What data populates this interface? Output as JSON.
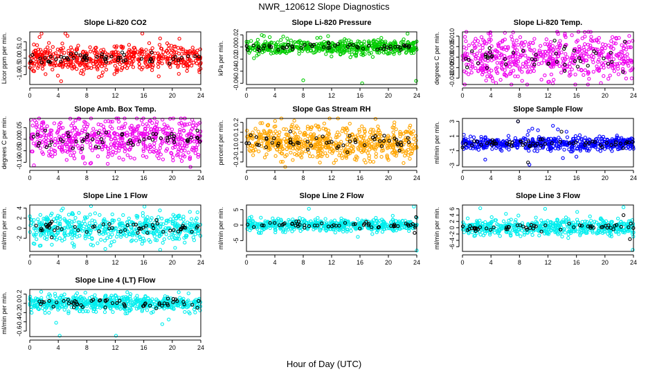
{
  "figure_title": "NWR_120612  Slope Diagnostics",
  "x_axis_label": "Hour of Day (UTC)",
  "chart_data": [
    {
      "type": "scatter",
      "title": "Slope Li-820 CO2",
      "ylabel": "Licor ppm per min.",
      "xlim": [
        0,
        24
      ],
      "ylim": [
        -1.6,
        1.6
      ],
      "x_ticks": [
        "0",
        "4",
        "8",
        "12",
        "16",
        "20",
        "24"
      ],
      "y_ticks": [
        {
          "v": -1,
          "label": "-1.0"
        },
        {
          "v": -0.5,
          "label": "-0.5"
        },
        {
          "v": 0,
          "label": "0.0"
        },
        {
          "v": 0.5,
          "label": "0.5"
        },
        {
          "v": 1,
          "label": "1.0"
        }
      ],
      "series": [
        {
          "color": "#ff0000",
          "n": 520,
          "spread": 0.42,
          "gen_seed": 11,
          "extras": [
            [
              4.4,
              -1.4
            ],
            [
              5.0,
              1.5
            ],
            [
              5.3,
              1.35
            ],
            [
              9.7,
              -1.15
            ],
            [
              15.8,
              1.5
            ],
            [
              18.3,
              1.2
            ],
            [
              18.1,
              -1.1
            ]
          ]
        },
        {
          "color": "#000000",
          "n": 55,
          "spread": 0.18,
          "gen_seed": 12
        }
      ],
      "grid": false
    },
    {
      "type": "scatter",
      "title": "Slope Li-820 Pressure",
      "ylabel": "kPa per min.",
      "xlim": [
        0,
        24
      ],
      "ylim": [
        -0.062,
        0.025
      ],
      "x_ticks": [
        "0",
        "4",
        "8",
        "12",
        "16",
        "20",
        "24"
      ],
      "y_ticks": [
        {
          "v": -0.06,
          "label": "-0.06"
        },
        {
          "v": -0.04,
          "label": "-0.04"
        },
        {
          "v": -0.02,
          "label": "-0.02"
        },
        {
          "v": 0,
          "label": "0.00"
        },
        {
          "v": 0.02,
          "label": "0.02"
        }
      ],
      "series": [
        {
          "color": "#00cc00",
          "n": 520,
          "spread": 0.006,
          "gen_seed": 21,
          "extras": [
            [
              8.0,
              -0.055
            ],
            [
              16.3,
              -0.06
            ],
            [
              23.9,
              -0.056
            ],
            [
              11.5,
              0.018
            ],
            [
              22.7,
              0.022
            ],
            [
              19.0,
              0.015
            ]
          ]
        },
        {
          "color": "#000000",
          "n": 55,
          "spread": 0.003,
          "gen_seed": 22
        }
      ],
      "grid": false
    },
    {
      "type": "scatter",
      "title": "Slope Li-820 Temp.",
      "ylabel": "degrees C per min.",
      "xlim": [
        0,
        24
      ],
      "ylim": [
        -0.013,
        0.012
      ],
      "x_ticks": [
        "0",
        "4",
        "8",
        "12",
        "16",
        "20",
        "24"
      ],
      "y_ticks": [
        {
          "v": -0.01,
          "label": "-0.010"
        },
        {
          "v": -0.005,
          "label": "-0.005"
        },
        {
          "v": 0,
          "label": "0.000"
        },
        {
          "v": 0.005,
          "label": "0.005"
        },
        {
          "v": 0.01,
          "label": "0.010"
        }
      ],
      "series": [
        {
          "color": "#ee00ee",
          "n": 560,
          "spread": 0.0055,
          "gen_seed": 31
        },
        {
          "color": "#000000",
          "n": 45,
          "spread": 0.004,
          "gen_seed": 32
        }
      ],
      "grid": false
    },
    {
      "type": "scatter",
      "title": "Slope Amb. Box Temp.",
      "ylabel": "degrees C per min.",
      "xlim": [
        0,
        24
      ],
      "ylim": [
        -0.12,
        0.09
      ],
      "x_ticks": [
        "0",
        "4",
        "8",
        "12",
        "16",
        "20",
        "24"
      ],
      "y_ticks": [
        {
          "v": -0.1,
          "label": "-0.10"
        },
        {
          "v": -0.05,
          "label": "-0.05"
        },
        {
          "v": 0,
          "label": "0.00"
        },
        {
          "v": 0.05,
          "label": "0.05"
        }
      ],
      "series": [
        {
          "color": "#ee00ee",
          "n": 560,
          "spread": 0.045,
          "gen_seed": 41
        },
        {
          "color": "#000000",
          "n": 55,
          "spread": 0.02,
          "gen_seed": 42
        }
      ],
      "grid": false
    },
    {
      "type": "scatter",
      "title": "Slope Gas Stream RH",
      "ylabel": "percent per min.",
      "xlim": [
        0,
        24
      ],
      "ylim": [
        -0.25,
        0.24
      ],
      "x_ticks": [
        "0",
        "4",
        "8",
        "12",
        "16",
        "20",
        "24"
      ],
      "y_ticks": [
        {
          "v": -0.2,
          "label": "-0.2"
        },
        {
          "v": -0.1,
          "label": "-0.1"
        },
        {
          "v": 0,
          "label": "0.0"
        },
        {
          "v": 0.1,
          "label": "0.1"
        },
        {
          "v": 0.2,
          "label": "0.2"
        }
      ],
      "series": [
        {
          "color": "#ffa500",
          "n": 620,
          "spread": 0.085,
          "gen_seed": 51
        },
        {
          "color": "#000000",
          "n": 55,
          "spread": 0.04,
          "gen_seed": 52
        }
      ],
      "grid": false
    },
    {
      "type": "scatter",
      "title": "Slope Sample Flow",
      "ylabel": "ml/min per min.",
      "xlim": [
        0,
        24
      ],
      "ylim": [
        -3.2,
        3.4
      ],
      "x_ticks": [
        "0",
        "4",
        "8",
        "12",
        "16",
        "20",
        "24"
      ],
      "y_ticks": [
        {
          "v": -3,
          "label": "-3"
        },
        {
          "v": -1,
          "label": "-1"
        },
        {
          "v": 1,
          "label": "1"
        },
        {
          "v": 3,
          "label": "3"
        }
      ],
      "series": [
        {
          "color": "#0000ff",
          "n": 520,
          "spread": 0.45,
          "gen_seed": 61,
          "extras": [
            [
              3.2,
              -2.2
            ],
            [
              7.8,
              3.0
            ],
            [
              9.4,
              -2.9
            ],
            [
              9.8,
              2.0
            ],
            [
              10.6,
              1.8
            ],
            [
              12.7,
              2.4
            ],
            [
              13.4,
              1.9
            ],
            [
              14.1,
              -2.0
            ],
            [
              14.6,
              1.6
            ],
            [
              9.3,
              1.7
            ]
          ]
        },
        {
          "color": "#000000",
          "n": 55,
          "spread": 0.25,
          "gen_seed": 62,
          "extras": [
            [
              7.8,
              3.0
            ],
            [
              9.2,
              -2.6
            ],
            [
              13.9,
              1.6
            ]
          ]
        }
      ],
      "grid": false
    },
    {
      "type": "scatter",
      "title": "Slope Line 1 Flow",
      "ylabel": "ml/min per min.",
      "xlim": [
        0,
        24
      ],
      "ylim": [
        -4.6,
        4.6
      ],
      "x_ticks": [
        "0",
        "4",
        "8",
        "12",
        "16",
        "20",
        "24"
      ],
      "y_ticks": [
        {
          "v": -2,
          "label": "-2"
        },
        {
          "v": 0,
          "label": "0"
        },
        {
          "v": 2,
          "label": "2"
        },
        {
          "v": 4,
          "label": "4"
        }
      ],
      "series": [
        {
          "color": "#00eeee",
          "n": 520,
          "spread": 1.35,
          "gen_seed": 71,
          "extras": [
            [
              8.6,
              4.4
            ],
            [
              10.6,
              -4.1
            ],
            [
              16.1,
              4.3
            ],
            [
              20.4,
              -3.9
            ]
          ]
        },
        {
          "color": "#000000",
          "n": 55,
          "spread": 0.55,
          "gen_seed": 72
        }
      ],
      "grid": false
    },
    {
      "type": "scatter",
      "title": "Slope Line 2 Flow",
      "ylabel": "ml/min per min.",
      "xlim": [
        0,
        24
      ],
      "ylim": [
        -8.5,
        6.5
      ],
      "x_ticks": [
        "0",
        "4",
        "8",
        "12",
        "16",
        "20",
        "24"
      ],
      "y_ticks": [
        {
          "v": -5,
          "label": "-5"
        },
        {
          "v": 0,
          "label": "0"
        },
        {
          "v": 5,
          "label": "5"
        }
      ],
      "series": [
        {
          "color": "#00eeee",
          "n": 520,
          "spread": 1.0,
          "gen_seed": 81,
          "extras": [
            [
              8.8,
              5.3
            ],
            [
              15.7,
              -3.8
            ],
            [
              23.6,
              6.0
            ],
            [
              24.0,
              -8.2
            ]
          ]
        },
        {
          "color": "#000000",
          "n": 55,
          "spread": 0.45,
          "gen_seed": 82,
          "extras": [
            [
              23.9,
              2.6
            ],
            [
              23.7,
              -2.5
            ]
          ]
        }
      ],
      "grid": false
    },
    {
      "type": "scatter",
      "title": "Slope Line 3 Flow",
      "ylabel": "ml/min per min.",
      "xlim": [
        0,
        24
      ],
      "ylim": [
        -7.5,
        7.2
      ],
      "x_ticks": [
        "0",
        "4",
        "8",
        "12",
        "16",
        "20",
        "24"
      ],
      "y_ticks": [
        {
          "v": -6,
          "label": "-6"
        },
        {
          "v": -4,
          "label": "-4"
        },
        {
          "v": -2,
          "label": "-2"
        },
        {
          "v": 0,
          "label": "0"
        },
        {
          "v": 2,
          "label": "2"
        },
        {
          "v": 4,
          "label": "4"
        },
        {
          "v": 6,
          "label": "6"
        }
      ],
      "series": [
        {
          "color": "#00eeee",
          "n": 520,
          "spread": 1.3,
          "gen_seed": 91,
          "extras": [
            [
              2.5,
              6.2
            ],
            [
              6.1,
              4.4
            ],
            [
              11.6,
              6.0
            ],
            [
              16.1,
              5.0
            ],
            [
              17.9,
              3.6
            ],
            [
              22.6,
              6.5
            ],
            [
              23.9,
              -7.0
            ]
          ]
        },
        {
          "color": "#000000",
          "n": 55,
          "spread": 0.6,
          "gen_seed": 92,
          "extras": [
            [
              23.5,
              -3.6
            ],
            [
              22.6,
              4.0
            ]
          ]
        }
      ],
      "grid": false
    },
    {
      "type": "scatter",
      "title": "Slope Line 4 (LT) Flow",
      "ylabel": "ml/min per min.",
      "xlim": [
        0,
        24
      ],
      "ylim": [
        -0.72,
        0.3
      ],
      "x_ticks": [
        "0",
        "4",
        "8",
        "12",
        "16",
        "20",
        "24"
      ],
      "y_ticks": [
        {
          "v": -0.6,
          "label": "-0.6"
        },
        {
          "v": -0.4,
          "label": "-0.4"
        },
        {
          "v": -0.2,
          "label": "-0.2"
        },
        {
          "v": 0,
          "label": "0.0"
        },
        {
          "v": 0.2,
          "label": "0.2"
        }
      ],
      "series": [
        {
          "color": "#00eeee",
          "n": 560,
          "spread": 0.085,
          "gen_seed": 101,
          "extras": [
            [
              4.2,
              -0.7
            ],
            [
              12.1,
              -0.7
            ],
            [
              19.5,
              -0.35
            ],
            [
              18.6,
              -0.45
            ],
            [
              1.6,
              0.25
            ],
            [
              3.7,
              -0.42
            ]
          ]
        },
        {
          "color": "#000000",
          "n": 55,
          "spread": 0.045,
          "gen_seed": 102
        }
      ],
      "grid": false
    }
  ]
}
